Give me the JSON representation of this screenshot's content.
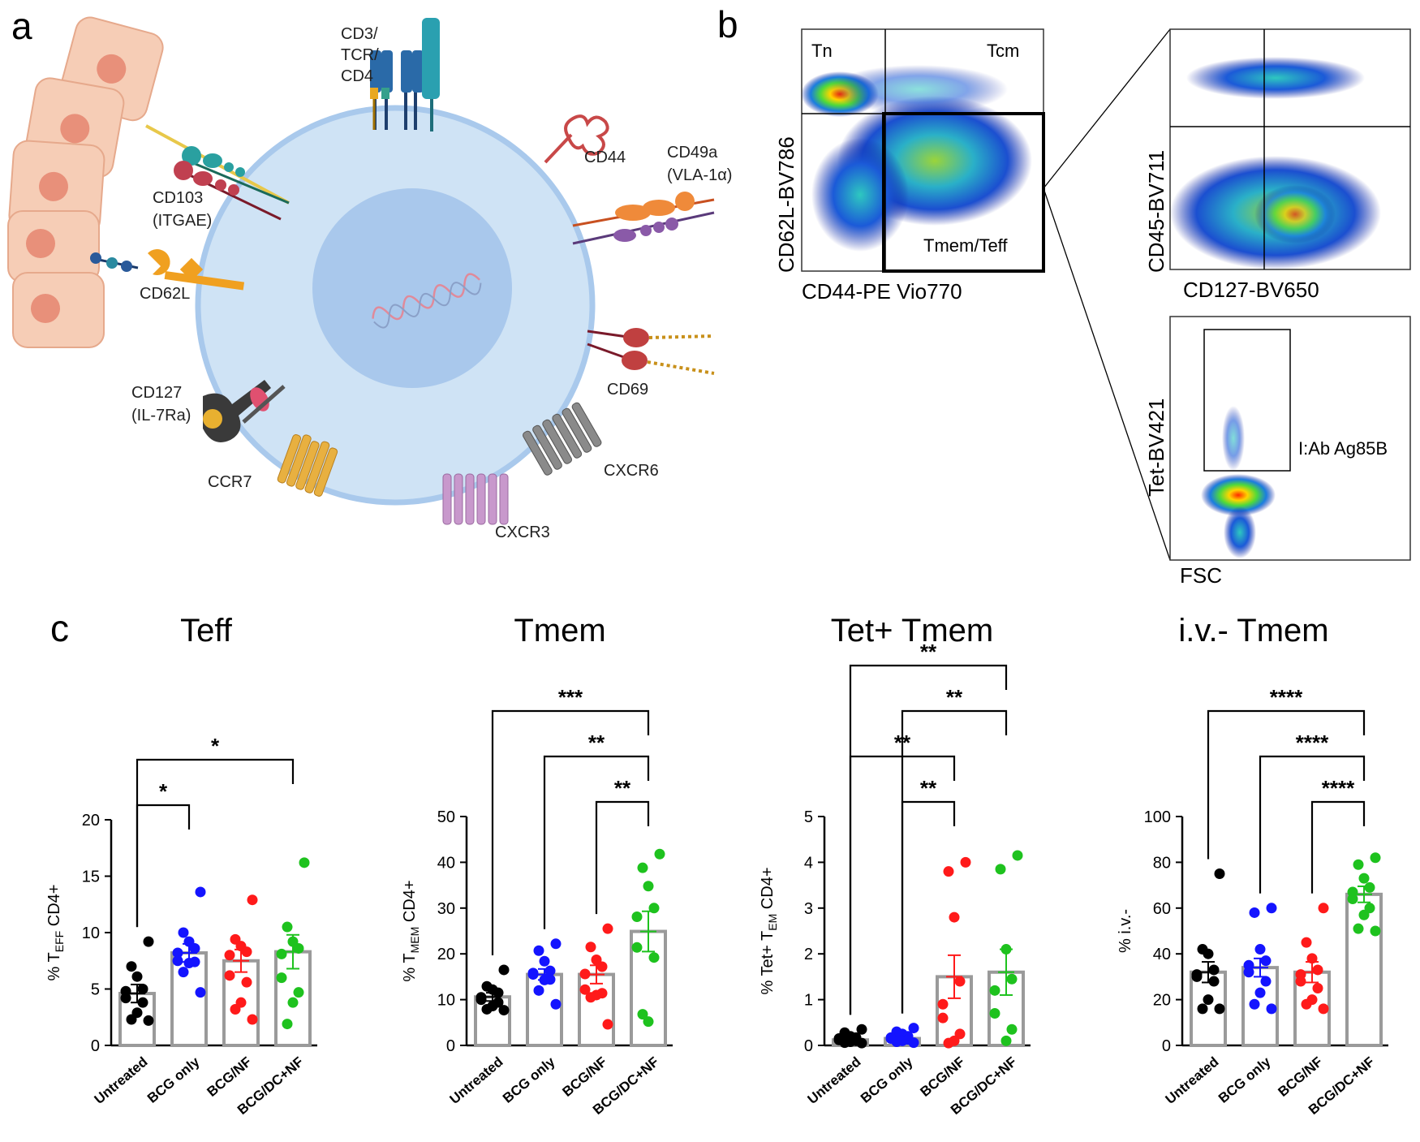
{
  "panel_letters": {
    "a": "a",
    "b": "b",
    "c": "c"
  },
  "panel_a": {
    "labels": {
      "cd3": [
        "CD3/",
        "TCR/",
        "CD4"
      ],
      "cd44": "CD44",
      "cd49a": [
        "CD49a",
        "(VLA-1α)"
      ],
      "cd103": [
        "CD103",
        "(ITGAE)"
      ],
      "cd62l": "CD62L",
      "cd69": "CD69",
      "cd127": [
        "CD127",
        "(IL-7Ra)"
      ],
      "ccr7": "CCR7",
      "cxcr3": "CXCR3",
      "cxcr6": "CXCR6"
    },
    "colors": {
      "cell": "#cfe3f5",
      "cell_border": "#a9c9ec",
      "nucleus": "#a9c8ec",
      "epithelium": "#f6cdb6",
      "epi_nucleus": "#e8907a"
    }
  },
  "panel_b": {
    "plot1": {
      "q_tl": "Tn",
      "q_tr": "Tcm",
      "q_br": "Tmem/Teff",
      "xlabel": "CD44-PE Vio770",
      "ylabel": "CD62L-BV786"
    },
    "plot2": {
      "xlabel": "CD127-BV650",
      "ylabel": "CD45-BV711"
    },
    "plot3": {
      "xlabel": "FSC",
      "ylabel": "Tet-BV421",
      "gate": "I:Ab Ag85B"
    }
  },
  "chart_data": [
    {
      "type": "bar",
      "title": "Teff",
      "ylabel": [
        "% T",
        "EFF",
        " CD4+"
      ],
      "categories": [
        "Untreated",
        "BCG only",
        "BCG/NF",
        "BCG/DC+NF"
      ],
      "ylim": [
        0,
        20
      ],
      "yticks": [
        0,
        5,
        10,
        15,
        20
      ],
      "means": [
        4.6,
        8.2,
        7.5,
        8.3
      ],
      "sem": [
        0.8,
        0.8,
        1.0,
        1.5
      ],
      "points": [
        [
          9.2,
          7.0,
          6.1,
          5.0,
          4.8,
          4.2,
          3.8,
          2.9,
          2.3,
          2.2
        ],
        [
          13.6,
          10.0,
          9.2,
          8.6,
          8.2,
          7.5,
          7.4,
          7.3,
          6.5,
          4.7
        ],
        [
          12.9,
          9.4,
          8.8,
          8.3,
          8.0,
          6.2,
          5.6,
          3.8,
          3.2,
          2.3
        ],
        [
          16.2,
          10.5,
          9.2,
          8.6,
          8.1,
          6.0,
          4.7,
          3.8,
          1.9
        ]
      ],
      "significance": [
        {
          "from": 0,
          "to": 1,
          "label": "*"
        },
        {
          "from": 0,
          "to": 3,
          "label": "*"
        }
      ]
    },
    {
      "type": "bar",
      "title": "Tmem",
      "ylabel": [
        "% T",
        "MEM",
        " CD4+"
      ],
      "categories": [
        "Untreated",
        "BCG only",
        "BCG/NF",
        "BCG/DC+NF"
      ],
      "ylim": [
        0,
        50
      ],
      "yticks": [
        0,
        10,
        20,
        30,
        40,
        50
      ],
      "means": [
        10.6,
        15.5,
        15.5,
        24.9
      ],
      "sem": [
        0.9,
        1.2,
        2.0,
        4.4
      ],
      "points": [
        [
          16.5,
          12.9,
          12.2,
          11.5,
          10.5,
          10.0,
          9.4,
          8.6,
          7.9,
          7.7
        ],
        [
          22.2,
          20.7,
          18.4,
          16.3,
          15.8,
          15.5,
          14.4,
          14.3,
          12.0,
          9.0
        ],
        [
          25.5,
          21.5,
          18.7,
          17.2,
          15.6,
          12.2,
          11.4,
          11.0,
          10.5,
          4.6
        ],
        [
          41.8,
          38.8,
          34.8,
          30.0,
          28.1,
          21.4,
          19.2,
          5.2,
          6.8
        ]
      ],
      "significance": [
        {
          "from": 2,
          "to": 3,
          "label": "**"
        },
        {
          "from": 1,
          "to": 3,
          "label": "**"
        },
        {
          "from": 0,
          "to": 3,
          "label": "***"
        }
      ]
    },
    {
      "type": "bar",
      "title": "Tet+ Tmem",
      "ylabel": [
        "% Tet+ T",
        "EM",
        " CD4+"
      ],
      "categories": [
        "Untreated",
        "BCG only",
        "BCG/NF",
        "BCG/DC+NF"
      ],
      "ylim": [
        0,
        5
      ],
      "yticks": [
        0,
        1,
        2,
        3,
        4,
        5
      ],
      "means": [
        0.12,
        0.15,
        1.5,
        1.6
      ],
      "sem": [
        0.03,
        0.03,
        0.47,
        0.5
      ],
      "points": [
        [
          0.35,
          0.28,
          0.2,
          0.17,
          0.15,
          0.12,
          0.1,
          0.08,
          0.06,
          0.05
        ],
        [
          0.38,
          0.3,
          0.25,
          0.2,
          0.17,
          0.15,
          0.13,
          0.1,
          0.08,
          0.06
        ],
        [
          4.0,
          3.8,
          2.8,
          1.4,
          0.9,
          0.6,
          0.25,
          0.1,
          0.05
        ],
        [
          4.15,
          3.85,
          2.1,
          1.45,
          1.2,
          0.7,
          0.35,
          0.1
        ]
      ],
      "significance": [
        {
          "from": 2,
          "to": 2,
          "ref": 1,
          "label": "**"
        },
        {
          "from": 0,
          "to": 2,
          "label": "**"
        },
        {
          "from": 1,
          "to": 3,
          "label": "**"
        },
        {
          "from": 0,
          "to": 3,
          "label": "**"
        }
      ]
    },
    {
      "type": "bar",
      "title": "i.v.- Tmem",
      "ylabel": [
        "% i.v.-",
        "",
        ""
      ],
      "categories": [
        "Untreated",
        "BCG only",
        "BCG/NF",
        "BCG/DC+NF"
      ],
      "ylim": [
        0,
        100
      ],
      "yticks": [
        0,
        20,
        40,
        60,
        80,
        100
      ],
      "means": [
        32,
        34,
        32,
        66
      ],
      "sem": [
        4.5,
        4.0,
        4.5,
        3.5
      ],
      "points": [
        [
          75,
          42,
          40,
          33,
          31,
          30,
          28,
          20,
          16,
          16
        ],
        [
          60,
          58,
          42,
          37,
          35,
          32,
          28,
          23,
          18,
          16
        ],
        [
          60,
          45,
          38,
          33,
          31,
          28,
          25,
          20,
          18,
          16
        ],
        [
          82,
          79,
          73,
          69,
          67,
          64,
          60,
          57,
          51,
          50
        ]
      ],
      "significance": [
        {
          "from": 2,
          "to": 3,
          "label": "****"
        },
        {
          "from": 1,
          "to": 3,
          "label": "****"
        },
        {
          "from": 0,
          "to": 3,
          "label": "****"
        }
      ]
    }
  ],
  "group_colors": [
    "#000000",
    "#1414ff",
    "#ff1a1a",
    "#1ec21e"
  ]
}
